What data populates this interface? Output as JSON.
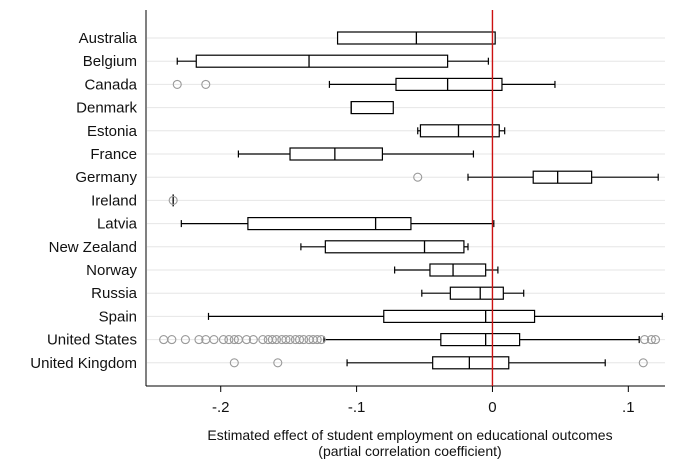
{
  "chart_data": {
    "type": "boxplot",
    "orientation": "horizontal",
    "title": "",
    "xlabel_lines": [
      "Estimated effect of student employment on educational outcomes",
      "(partial correlation coefficient)"
    ],
    "ylabel": "",
    "xlim": [
      -0.255,
      0.127
    ],
    "x_ticks": [
      -0.2,
      -0.1,
      0,
      0.1
    ],
    "x_tick_labels": [
      "-.2",
      "-.1",
      "0",
      ".1"
    ],
    "grid": "horizontal",
    "reference_line": {
      "x": 0,
      "color": "#cc1111"
    },
    "box_color": "#000000",
    "outlier_color": "#9a9a9a",
    "categories": [
      "Australia",
      "Belgium",
      "Canada",
      "Denmark",
      "Estonia",
      "France",
      "Germany",
      "Ireland",
      "Latvia",
      "New Zealand",
      "Norway",
      "Russia",
      "Spain",
      "United States",
      "United Kingdom"
    ],
    "boxes": [
      {
        "label": "Australia",
        "min": -0.114,
        "q1": -0.114,
        "median": -0.056,
        "q3": 0.002,
        "max": 0.002,
        "outliers": []
      },
      {
        "label": "Belgium",
        "min": -0.232,
        "q1": -0.218,
        "median": -0.135,
        "q3": -0.033,
        "max": -0.003,
        "outliers": []
      },
      {
        "label": "Canada",
        "min": -0.12,
        "q1": -0.071,
        "median": -0.033,
        "q3": 0.007,
        "max": 0.046,
        "outliers": [
          -0.232,
          -0.211
        ]
      },
      {
        "label": "Denmark",
        "min": -0.104,
        "q1": -0.104,
        "median": -0.104,
        "q3": -0.073,
        "max": -0.073,
        "outliers": []
      },
      {
        "label": "Estonia",
        "min": -0.055,
        "q1": -0.053,
        "median": -0.025,
        "q3": 0.005,
        "max": 0.009,
        "outliers": []
      },
      {
        "label": "France",
        "min": -0.187,
        "q1": -0.149,
        "median": -0.116,
        "q3": -0.081,
        "max": -0.014,
        "outliers": []
      },
      {
        "label": "Germany",
        "min": -0.018,
        "q1": 0.03,
        "median": 0.048,
        "q3": 0.073,
        "max": 0.122,
        "outliers": [
          -0.055
        ]
      },
      {
        "label": "Ireland",
        "min": -0.235,
        "q1": -0.235,
        "median": -0.235,
        "q3": -0.235,
        "max": -0.235,
        "outliers": [
          -0.235
        ]
      },
      {
        "label": "Latvia",
        "min": -0.229,
        "q1": -0.18,
        "median": -0.086,
        "q3": -0.06,
        "max": 0.001,
        "outliers": []
      },
      {
        "label": "New Zealand",
        "min": -0.141,
        "q1": -0.123,
        "median": -0.05,
        "q3": -0.021,
        "max": -0.018,
        "outliers": []
      },
      {
        "label": "Norway",
        "min": -0.072,
        "q1": -0.046,
        "median": -0.029,
        "q3": -0.005,
        "max": 0.004,
        "outliers": []
      },
      {
        "label": "Russia",
        "min": -0.052,
        "q1": -0.031,
        "median": -0.009,
        "q3": 0.008,
        "max": 0.023,
        "outliers": []
      },
      {
        "label": "Spain",
        "min": -0.209,
        "q1": -0.08,
        "median": -0.005,
        "q3": 0.031,
        "max": 0.125,
        "outliers": []
      },
      {
        "label": "United States",
        "min": -0.124,
        "q1": -0.038,
        "median": -0.005,
        "q3": 0.02,
        "max": 0.108,
        "outliers": [
          -0.242,
          -0.236,
          -0.226,
          -0.216,
          -0.211,
          -0.205,
          -0.198,
          -0.194,
          -0.19,
          -0.187,
          -0.181,
          -0.176,
          -0.169,
          -0.165,
          -0.162,
          -0.159,
          -0.155,
          -0.152,
          -0.149,
          -0.145,
          -0.142,
          -0.139,
          -0.135,
          -0.132,
          -0.129,
          -0.126,
          0.112,
          0.117,
          0.12
        ]
      },
      {
        "label": "United Kingdom",
        "min": -0.107,
        "q1": -0.044,
        "median": -0.017,
        "q3": 0.012,
        "max": 0.083,
        "outliers": [
          -0.19,
          -0.158,
          0.111
        ]
      }
    ]
  }
}
